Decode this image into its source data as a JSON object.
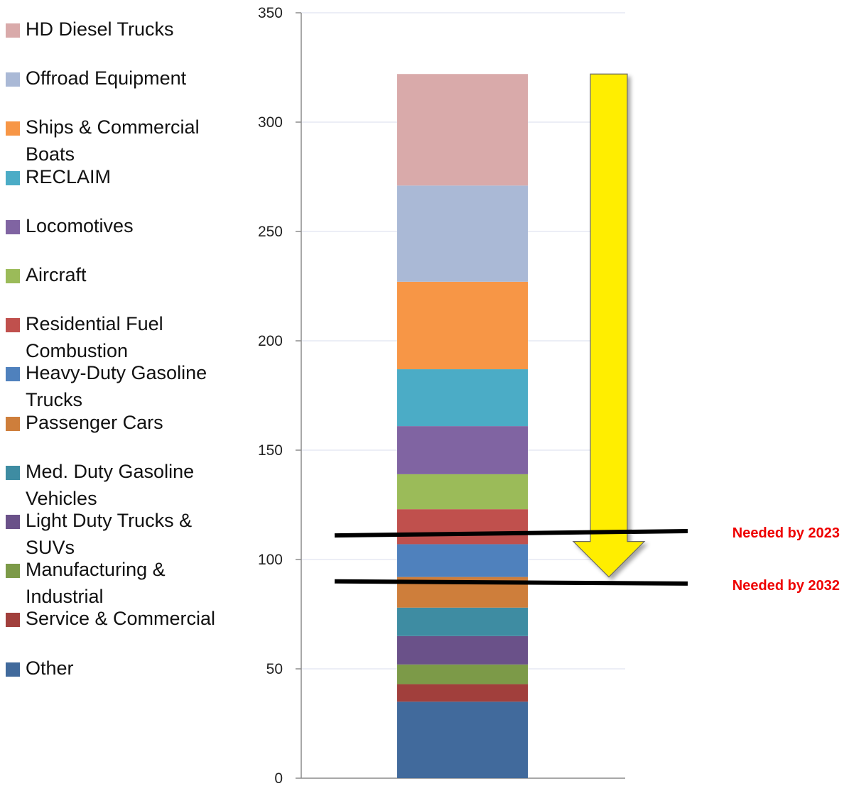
{
  "chart_data": {
    "type": "bar",
    "stacked": true,
    "title": "",
    "xlabel": "",
    "ylabel": "",
    "ylim": [
      0,
      350
    ],
    "yticks": [
      0,
      50,
      100,
      150,
      200,
      250,
      300,
      350
    ],
    "grid": true,
    "legend_position": "left",
    "categories": [
      ""
    ],
    "series": [
      {
        "name": "Other",
        "values": [
          35
        ],
        "color": "#416a9c"
      },
      {
        "name": "Service & Commercial",
        "values": [
          8
        ],
        "color": "#a13f3c"
      },
      {
        "name": "Manufacturing & Industrial",
        "values": [
          9
        ],
        "color": "#7c9a48"
      },
      {
        "name": "Light Duty Trucks & SUVs",
        "values": [
          13
        ],
        "color": "#6a5189"
      },
      {
        "name": "Med. Duty Gasoline Vehicles",
        "values": [
          13
        ],
        "color": "#3e8ca2"
      },
      {
        "name": "Passenger Cars",
        "values": [
          14
        ],
        "color": "#ce7e3b"
      },
      {
        "name": "Heavy-Duty Gasoline Trucks",
        "values": [
          15
        ],
        "color": "#4f81bd"
      },
      {
        "name": "Residential Fuel Combustion",
        "values": [
          16
        ],
        "color": "#c0504d"
      },
      {
        "name": "Aircraft",
        "values": [
          16
        ],
        "color": "#9bbb59"
      },
      {
        "name": "Locomotives",
        "values": [
          22
        ],
        "color": "#8064a2"
      },
      {
        "name": "RECLAIM",
        "values": [
          26
        ],
        "color": "#4bacc6"
      },
      {
        "name": "Ships & Commercial Boats",
        "values": [
          40
        ],
        "color": "#f79646"
      },
      {
        "name": "Offroad Equipment",
        "values": [
          44
        ],
        "color": "#aab9d6"
      },
      {
        "name": "HD Diesel Trucks",
        "values": [
          51
        ],
        "color": "#d9aaaa"
      }
    ],
    "annotations": [
      {
        "label": "Needed by 2023",
        "y_start": 111,
        "y_end": 113,
        "color": "#ee0000"
      },
      {
        "label": "Needed by 2032",
        "y_start": 90,
        "y_end": 89,
        "color": "#ee0000"
      }
    ],
    "arrow": {
      "from": 322,
      "to": 92,
      "color": "#ffee00"
    }
  }
}
